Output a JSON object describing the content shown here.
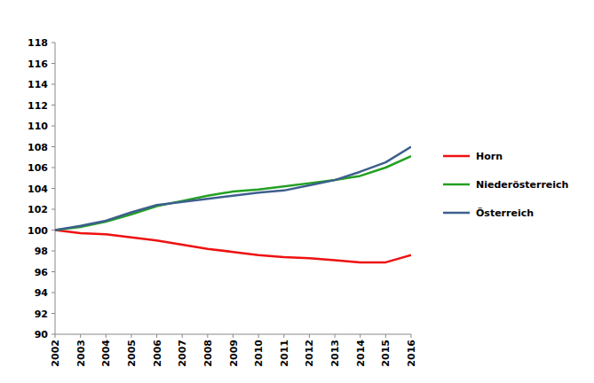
{
  "chart_data": {
    "type": "line",
    "categories": [
      "2002",
      "2003",
      "2004",
      "2005",
      "2006",
      "2007",
      "2008",
      "2009",
      "2010",
      "2011",
      "2012",
      "2013",
      "2014",
      "2015",
      "2016"
    ],
    "series": [
      {
        "name": "Horn",
        "color": "#ee1111",
        "values": [
          100,
          99.7,
          99.6,
          99.3,
          99.0,
          98.6,
          98.2,
          97.9,
          97.6,
          97.4,
          97.3,
          97.1,
          96.9,
          96.9,
          97.6
        ]
      },
      {
        "name": "Niederösterreich",
        "color": "#22a022",
        "values": [
          100,
          100.3,
          100.8,
          101.5,
          102.3,
          102.8,
          103.3,
          103.7,
          103.9,
          104.2,
          104.5,
          104.8,
          105.2,
          106.0,
          107.1
        ]
      },
      {
        "name": "Österreich",
        "color": "#3d5f8e",
        "values": [
          100,
          100.4,
          100.9,
          101.7,
          102.4,
          102.7,
          103.0,
          103.3,
          103.6,
          103.8,
          104.3,
          104.8,
          105.6,
          106.5,
          108.0
        ]
      }
    ],
    "ylim": [
      90,
      118
    ],
    "yticks": [
      90,
      92,
      94,
      96,
      98,
      100,
      102,
      104,
      106,
      108,
      110,
      112,
      114,
      116,
      118
    ],
    "grid": false,
    "legend": "right"
  }
}
